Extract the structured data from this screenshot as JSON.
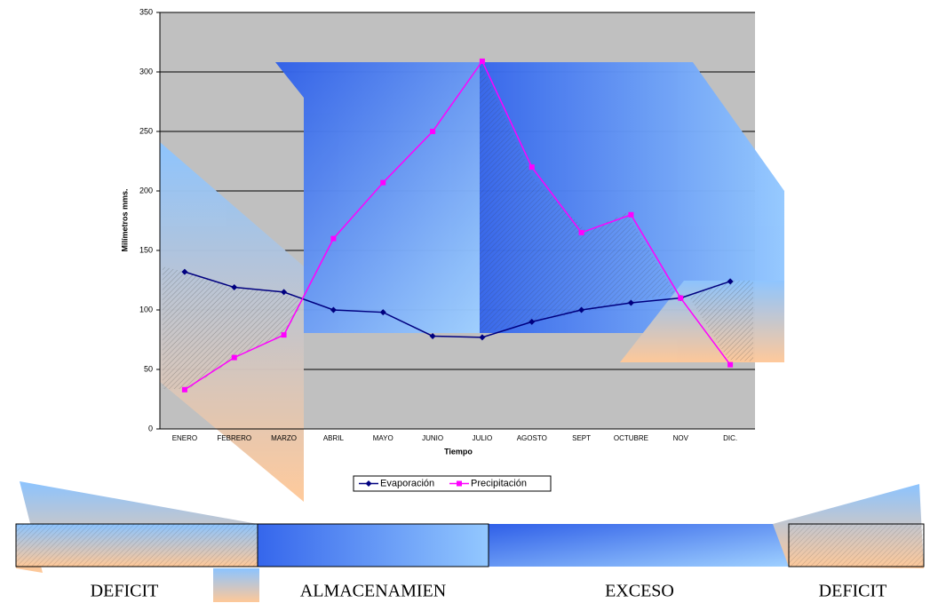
{
  "chart_data": {
    "type": "line",
    "x_label": "Tiempo",
    "y_label": "Milímetros mms.",
    "categories": [
      "ENERO",
      "FEBRERO",
      "MARZO",
      "ABRIL",
      "MAYO",
      "JUNIO",
      "JULIO",
      "AGOSTO",
      "SEPT",
      "OCTUBRE",
      "NOV",
      "DIC."
    ],
    "series": [
      {
        "name": "Evaporación",
        "color": "#000080",
        "marker": "diamond",
        "values": [
          132,
          119,
          115,
          100,
          98,
          78,
          77,
          90,
          100,
          106,
          110,
          124
        ]
      },
      {
        "name": "Precipitación",
        "color": "#ff00ff",
        "marker": "square",
        "values": [
          33,
          60,
          79,
          160,
          207,
          250,
          309,
          220,
          165,
          180,
          110,
          54
        ]
      }
    ],
    "ylim": [
      0,
      350
    ],
    "yticks": [
      0,
      50,
      100,
      150,
      200,
      250,
      300,
      350
    ],
    "grid": true
  },
  "bands": [
    "DEFICIT",
    "ALMACENAMIEN",
    "EXCESO",
    "DEFICIT"
  ]
}
